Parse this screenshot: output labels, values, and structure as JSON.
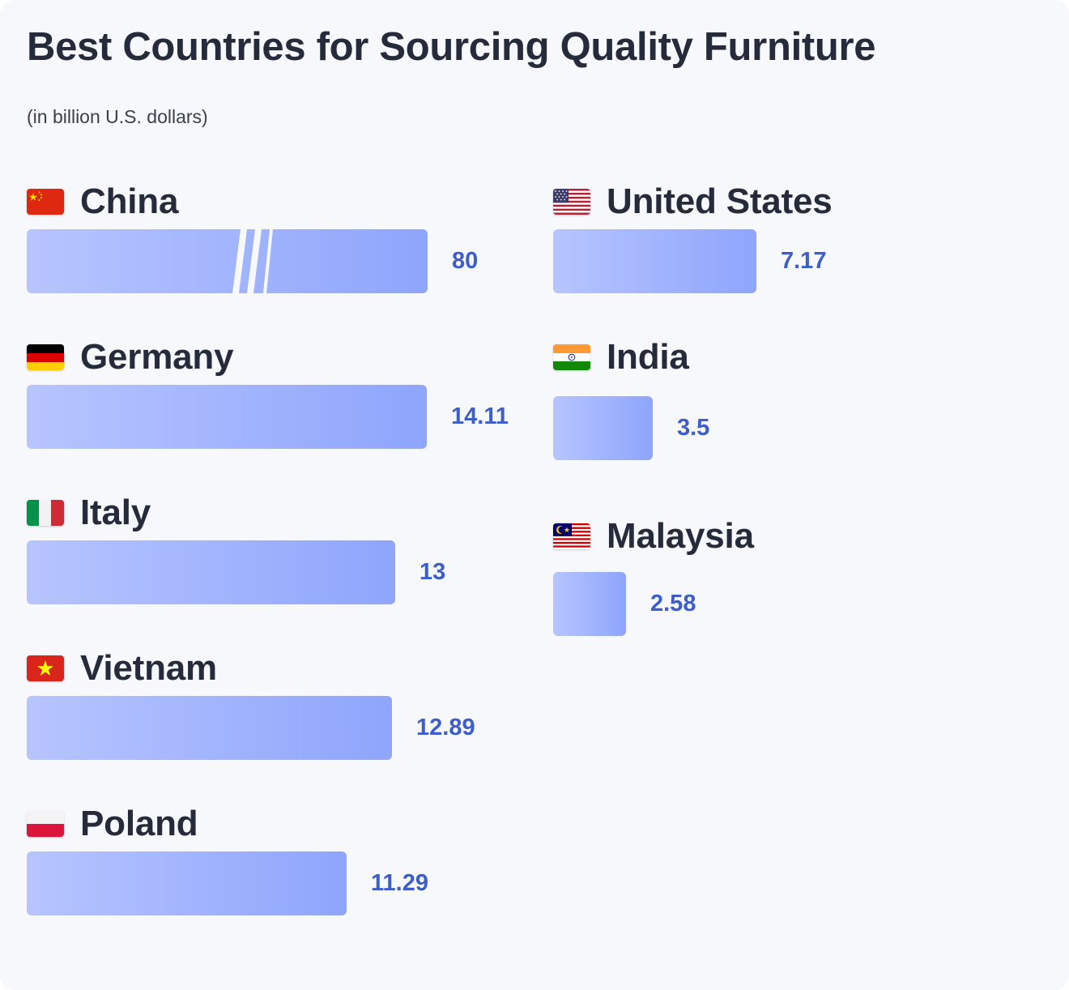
{
  "colors": {
    "background": "#f7f8fc",
    "bar_start": "#b7c4ff",
    "bar_end": "#8ea5fb",
    "value_text": "#3d5ec8",
    "title_text": "#252b3b"
  },
  "chart_data": {
    "type": "bar",
    "orientation": "horizontal",
    "title": "Best Countries for Sourcing Quality Furniture",
    "subtitle": "(in billion U.S. dollars)",
    "units": "billion U.S. dollars",
    "axis_break_on": "China",
    "items": [
      {
        "name": "China",
        "value": 80,
        "value_label": "80",
        "flag": "china-flag-icon"
      },
      {
        "name": "Germany",
        "value": 14.11,
        "value_label": "14.11",
        "flag": "germany-flag-icon"
      },
      {
        "name": "Italy",
        "value": 13,
        "value_label": "13",
        "flag": "italy-flag-icon"
      },
      {
        "name": "Vietnam",
        "value": 12.89,
        "value_label": "12.89",
        "flag": "vietnam-flag-icon"
      },
      {
        "name": "Poland",
        "value": 11.29,
        "value_label": "11.29",
        "flag": "poland-flag-icon"
      },
      {
        "name": "United States",
        "value": 7.17,
        "value_label": "7.17",
        "flag": "us-flag-icon"
      },
      {
        "name": "India",
        "value": 3.5,
        "value_label": "3.5",
        "flag": "india-flag-icon"
      },
      {
        "name": "Malaysia",
        "value": 2.58,
        "value_label": "2.58",
        "flag": "malaysia-flag-icon"
      }
    ]
  }
}
